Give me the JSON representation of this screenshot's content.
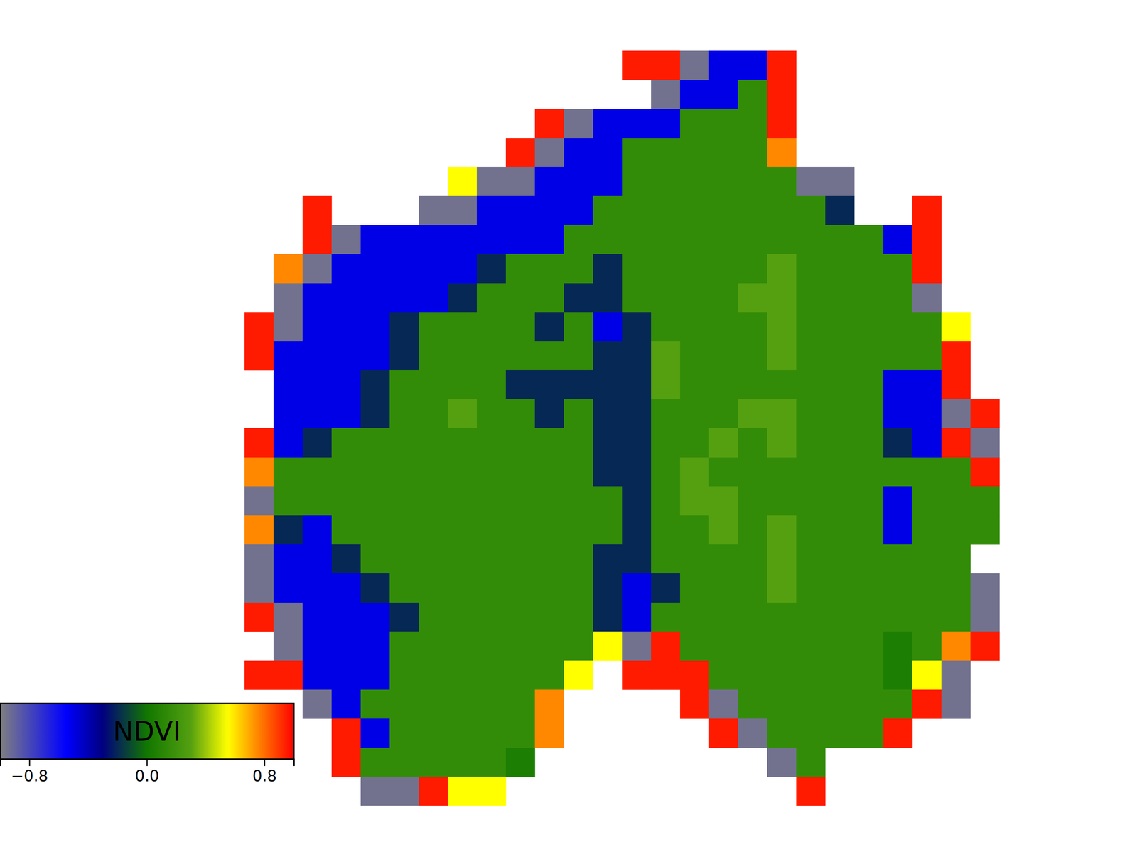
{
  "chart_data": {
    "type": "heatmap",
    "tick_labels": false,
    "cells": [
      [
        null,
        null,
        null,
        null,
        null,
        null,
        null,
        null,
        null,
        null,
        null,
        null,
        null,
        0.95,
        0.95,
        -0.95,
        -0.5,
        -0.5,
        0.95,
        null,
        null,
        null,
        null,
        null,
        null,
        null,
        null
      ],
      [
        null,
        null,
        null,
        null,
        null,
        null,
        null,
        null,
        null,
        null,
        null,
        null,
        null,
        null,
        -0.95,
        -0.5,
        -0.5,
        0.15,
        0.95,
        null,
        null,
        null,
        null,
        null,
        null,
        null,
        null
      ],
      [
        null,
        null,
        null,
        null,
        null,
        null,
        null,
        null,
        null,
        null,
        0.95,
        -0.95,
        -0.5,
        -0.5,
        -0.5,
        0.15,
        0.15,
        0.15,
        0.95,
        null,
        null,
        null,
        null,
        null,
        null,
        null,
        null
      ],
      [
        null,
        null,
        null,
        null,
        null,
        null,
        null,
        null,
        null,
        0.95,
        -0.95,
        -0.5,
        -0.5,
        0.15,
        0.15,
        0.15,
        0.15,
        0.15,
        0.75,
        null,
        null,
        null,
        null,
        null,
        null,
        null,
        null
      ],
      [
        null,
        null,
        null,
        null,
        null,
        null,
        null,
        0.55,
        -0.95,
        -0.95,
        -0.5,
        -0.5,
        -0.5,
        0.15,
        0.15,
        0.15,
        0.15,
        0.15,
        0.15,
        -0.95,
        -0.95,
        null,
        null,
        null,
        null,
        null,
        null
      ],
      [
        null,
        null,
        0.95,
        null,
        null,
        null,
        -0.95,
        -0.95,
        -0.5,
        -0.5,
        -0.5,
        -0.5,
        0.15,
        0.15,
        0.15,
        0.15,
        0.15,
        0.15,
        0.15,
        0.15,
        -0.2,
        null,
        null,
        0.95,
        null,
        null,
        null
      ],
      [
        null,
        null,
        0.95,
        -0.95,
        -0.5,
        -0.5,
        -0.5,
        -0.5,
        -0.5,
        -0.5,
        -0.5,
        0.15,
        0.15,
        0.15,
        0.15,
        0.15,
        0.15,
        0.15,
        0.15,
        0.15,
        0.15,
        0.15,
        -0.5,
        0.95,
        null,
        null,
        null
      ],
      [
        null,
        0.75,
        -0.95,
        -0.5,
        -0.5,
        -0.5,
        -0.5,
        -0.5,
        -0.2,
        0.15,
        0.15,
        0.15,
        -0.2,
        0.15,
        0.15,
        0.15,
        0.15,
        0.15,
        0.3,
        0.15,
        0.15,
        0.15,
        0.15,
        0.95,
        null,
        null,
        null
      ],
      [
        null,
        -0.95,
        -0.5,
        -0.5,
        -0.5,
        -0.5,
        -0.5,
        -0.2,
        0.15,
        0.15,
        0.15,
        -0.2,
        -0.2,
        0.15,
        0.15,
        0.15,
        0.15,
        0.3,
        0.3,
        0.15,
        0.15,
        0.15,
        0.15,
        -0.95,
        null,
        null,
        null
      ],
      [
        0.95,
        -0.95,
        -0.5,
        -0.5,
        -0.5,
        -0.2,
        0.15,
        0.15,
        0.15,
        0.15,
        -0.2,
        0.15,
        -0.5,
        -0.2,
        0.15,
        0.15,
        0.15,
        0.15,
        0.3,
        0.15,
        0.15,
        0.15,
        0.15,
        0.15,
        0.55,
        null,
        null
      ],
      [
        0.95,
        -0.5,
        -0.5,
        -0.5,
        -0.5,
        -0.2,
        0.15,
        0.15,
        0.15,
        0.15,
        0.15,
        0.15,
        -0.2,
        -0.2,
        0.3,
        0.15,
        0.15,
        0.15,
        0.3,
        0.15,
        0.15,
        0.15,
        0.15,
        0.15,
        0.95,
        null,
        null
      ],
      [
        null,
        -0.5,
        -0.5,
        -0.5,
        -0.2,
        0.15,
        0.15,
        0.15,
        0.15,
        -0.2,
        -0.2,
        -0.2,
        -0.2,
        -0.2,
        0.3,
        0.15,
        0.15,
        0.15,
        0.15,
        0.15,
        0.15,
        0.15,
        -0.5,
        -0.5,
        0.95,
        null,
        null
      ],
      [
        null,
        -0.5,
        -0.5,
        -0.5,
        -0.2,
        0.15,
        0.15,
        0.3,
        0.15,
        0.15,
        -0.2,
        0.15,
        -0.2,
        -0.2,
        0.15,
        0.15,
        0.15,
        0.3,
        0.3,
        0.15,
        0.15,
        0.15,
        -0.5,
        -0.5,
        -0.95,
        0.95,
        null
      ],
      [
        0.95,
        -0.5,
        -0.2,
        0.15,
        0.15,
        0.15,
        0.15,
        0.15,
        0.15,
        0.15,
        0.15,
        0.15,
        -0.2,
        -0.2,
        0.15,
        0.15,
        0.3,
        0.15,
        0.3,
        0.15,
        0.15,
        0.15,
        -0.2,
        -0.5,
        0.95,
        -0.95,
        null
      ],
      [
        0.75,
        0.15,
        0.15,
        0.15,
        0.15,
        0.15,
        0.15,
        0.15,
        0.15,
        0.15,
        0.15,
        0.15,
        -0.2,
        -0.2,
        0.15,
        0.3,
        0.15,
        0.15,
        0.15,
        0.15,
        0.15,
        0.15,
        0.15,
        0.15,
        0.15,
        0.95,
        null
      ],
      [
        -0.95,
        0.15,
        0.15,
        0.15,
        0.15,
        0.15,
        0.15,
        0.15,
        0.15,
        0.15,
        0.15,
        0.15,
        0.15,
        -0.2,
        0.15,
        0.3,
        0.3,
        0.15,
        0.15,
        0.15,
        0.15,
        0.15,
        -0.5,
        0.15,
        0.15,
        0.15,
        null
      ],
      [
        0.75,
        -0.2,
        -0.5,
        0.15,
        0.15,
        0.15,
        0.15,
        0.15,
        0.15,
        0.15,
        0.15,
        0.15,
        0.15,
        -0.2,
        0.15,
        0.15,
        0.3,
        0.15,
        0.3,
        0.15,
        0.15,
        0.15,
        -0.5,
        0.15,
        0.15,
        0.15,
        null
      ],
      [
        -0.95,
        -0.5,
        -0.5,
        -0.2,
        0.15,
        0.15,
        0.15,
        0.15,
        0.15,
        0.15,
        0.15,
        0.15,
        -0.2,
        -0.2,
        0.15,
        0.15,
        0.15,
        0.15,
        0.3,
        0.15,
        0.15,
        0.15,
        0.15,
        0.15,
        0.15,
        null,
        null
      ],
      [
        -0.95,
        -0.5,
        -0.5,
        -0.5,
        -0.2,
        0.15,
        0.15,
        0.15,
        0.15,
        0.15,
        0.15,
        0.15,
        -0.2,
        -0.5,
        -0.2,
        0.15,
        0.15,
        0.15,
        0.3,
        0.15,
        0.15,
        0.15,
        0.15,
        0.15,
        0.15,
        -0.95,
        null
      ],
      [
        0.95,
        -0.95,
        -0.5,
        -0.5,
        -0.5,
        -0.2,
        0.15,
        0.15,
        0.15,
        0.15,
        0.15,
        0.15,
        -0.2,
        -0.5,
        0.15,
        0.15,
        0.15,
        0.15,
        0.15,
        0.15,
        0.15,
        0.15,
        0.15,
        0.15,
        0.15,
        -0.95,
        null
      ],
      [
        null,
        -0.95,
        -0.5,
        -0.5,
        -0.5,
        0.15,
        0.15,
        0.15,
        0.15,
        0.15,
        0.15,
        0.15,
        0.55,
        -0.95,
        0.95,
        0.15,
        0.15,
        0.15,
        0.15,
        0.15,
        0.15,
        0.15,
        0.05,
        0.15,
        0.75,
        0.95,
        null
      ],
      [
        0.95,
        0.95,
        -0.5,
        -0.5,
        -0.5,
        0.15,
        0.15,
        0.15,
        0.15,
        0.15,
        0.15,
        0.55,
        null,
        0.95,
        0.95,
        0.95,
        0.15,
        0.15,
        0.15,
        0.15,
        0.15,
        0.15,
        0.05,
        0.55,
        -0.95,
        null,
        null
      ],
      [
        null,
        null,
        -0.95,
        -0.5,
        0.15,
        0.15,
        0.15,
        0.15,
        0.15,
        0.15,
        0.75,
        null,
        null,
        null,
        null,
        0.95,
        -0.95,
        0.15,
        0.15,
        0.15,
        0.15,
        0.15,
        0.15,
        0.95,
        -0.95,
        null,
        null
      ],
      [
        null,
        null,
        null,
        0.95,
        -0.5,
        0.15,
        0.15,
        0.15,
        0.15,
        0.15,
        0.75,
        null,
        null,
        null,
        null,
        null,
        0.95,
        -0.95,
        0.15,
        0.15,
        0.15,
        0.15,
        0.95,
        null,
        null,
        null,
        null
      ],
      [
        null,
        null,
        null,
        0.95,
        0.15,
        0.15,
        0.15,
        0.15,
        0.15,
        0.05,
        null,
        null,
        null,
        null,
        null,
        null,
        null,
        null,
        -0.95,
        0.15,
        null,
        null,
        null,
        null,
        null,
        null,
        null
      ],
      [
        null,
        null,
        null,
        null,
        -0.95,
        -0.95,
        0.95,
        0.55,
        0.55,
        null,
        null,
        null,
        null,
        null,
        null,
        null,
        null,
        null,
        null,
        0.95,
        null,
        null,
        null,
        null,
        null,
        null,
        null
      ]
    ],
    "colorbar": {
      "title": "NDVI",
      "range": [
        -1,
        1
      ],
      "ticks": [
        {
          "value": -0.8,
          "label": "−0.8"
        },
        {
          "value": 0,
          "label": "0.0"
        },
        {
          "value": 0.8,
          "label": "0.8"
        }
      ]
    }
  }
}
